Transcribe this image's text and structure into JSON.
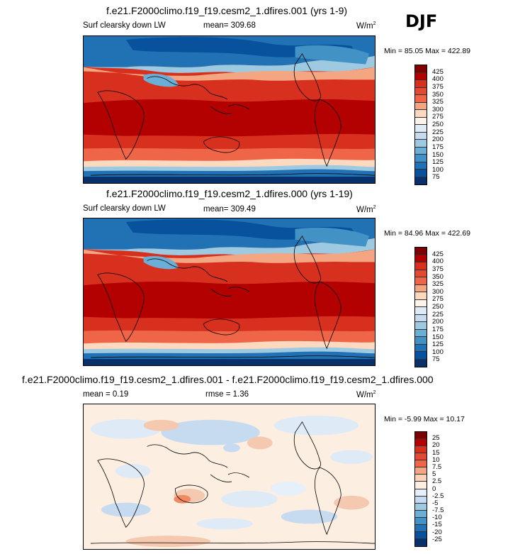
{
  "season": "DJF",
  "panels": [
    {
      "title": "f.e21.F2000climo.f19_f19.cesm2_1.dfires.001 (yrs 1-9)",
      "variable": "Surf clearsky down LW",
      "mean_label": "mean= 309.68",
      "units": "W/m",
      "units_sup": "2",
      "minmax": "Min =  85.05 Max = 422.89",
      "colorbar": {
        "levels": [
          "425",
          "400",
          "375",
          "350",
          "325",
          "300",
          "275",
          "250",
          "225",
          "200",
          "175",
          "150",
          "125",
          "100",
          "75"
        ],
        "colors": [
          "#7f0000",
          "#b30000",
          "#d7301f",
          "#e34a33",
          "#ef6548",
          "#f4a582",
          "#fdd9c0",
          "#fdf3ea",
          "#deebf7",
          "#c6dbef",
          "#9ecae1",
          "#6baed6",
          "#4292c6",
          "#2171b5",
          "#08519c",
          "#08306b"
        ]
      }
    },
    {
      "title": "f.e21.F2000climo.f19_f19.cesm2_1.dfires.000 (yrs 1-19)",
      "variable": "Surf clearsky down LW",
      "mean_label": "mean= 309.49",
      "units": "W/m",
      "units_sup": "2",
      "minmax": "Min =  84.96 Max = 422.69",
      "colorbar": {
        "levels": [
          "425",
          "400",
          "375",
          "350",
          "325",
          "300",
          "275",
          "250",
          "225",
          "200",
          "175",
          "150",
          "125",
          "100",
          "75"
        ],
        "colors": [
          "#7f0000",
          "#b30000",
          "#d7301f",
          "#e34a33",
          "#ef6548",
          "#f4a582",
          "#fdd9c0",
          "#fdf3ea",
          "#deebf7",
          "#c6dbef",
          "#9ecae1",
          "#6baed6",
          "#4292c6",
          "#2171b5",
          "#08519c",
          "#08306b"
        ]
      }
    },
    {
      "title": "f.e21.F2000climo.f19_f19.cesm2_1.dfires.001 - f.e21.F2000climo.f19_f19.cesm2_1.dfires.000",
      "mean_label": "mean =   0.19",
      "rmse_label": "rmse =   1.36",
      "units": "W/m",
      "units_sup": "2",
      "minmax": "Min =  -5.99 Max =  10.17",
      "colorbar": {
        "levels": [
          "25",
          "20",
          "15",
          "10",
          "7.5",
          "5",
          "2.5",
          "0",
          "-2.5",
          "-5",
          "-7.5",
          "-10",
          "-15",
          "-20",
          "-25"
        ],
        "colors": [
          "#7f0000",
          "#b30000",
          "#d7301f",
          "#e34a33",
          "#ef6548",
          "#f4a582",
          "#fcd2b8",
          "#fdeee2",
          "#e6f0fa",
          "#c6dbef",
          "#9ecae1",
          "#6baed6",
          "#4292c6",
          "#2171b5",
          "#08519c",
          "#08306b"
        ]
      }
    }
  ]
}
